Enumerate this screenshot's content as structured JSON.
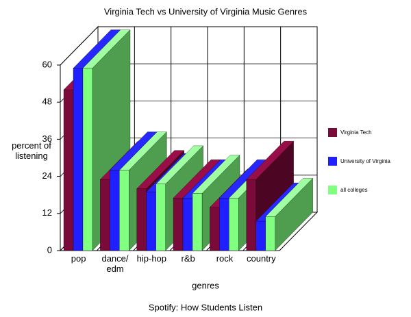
{
  "chart_data": {
    "type": "bar3d",
    "title": "Virginia Tech vs University of Virginia Music Genres",
    "caption": "Spotify: How Students Listen",
    "x_label": "genres",
    "y_label": "percent of listening",
    "categories": [
      "pop",
      "dance/ edm",
      "hip-hop",
      "r&b",
      "rock",
      "country"
    ],
    "series": [
      {
        "name": "Virginia Tech",
        "color": "#7a0a3a",
        "values": [
          52,
          23,
          20,
          17,
          14,
          23
        ]
      },
      {
        "name": "University of Virginia",
        "color": "#1f1fff",
        "values": [
          59,
          26,
          19,
          17,
          17,
          9.5
        ]
      },
      {
        "name": "all colleges",
        "color": "#80ff80",
        "values": [
          59,
          26,
          21.5,
          18.5,
          17,
          11
        ]
      }
    ],
    "ylim": [
      0,
      60
    ],
    "yticks": [
      0,
      12,
      24,
      36,
      48,
      60
    ],
    "grid": true
  }
}
